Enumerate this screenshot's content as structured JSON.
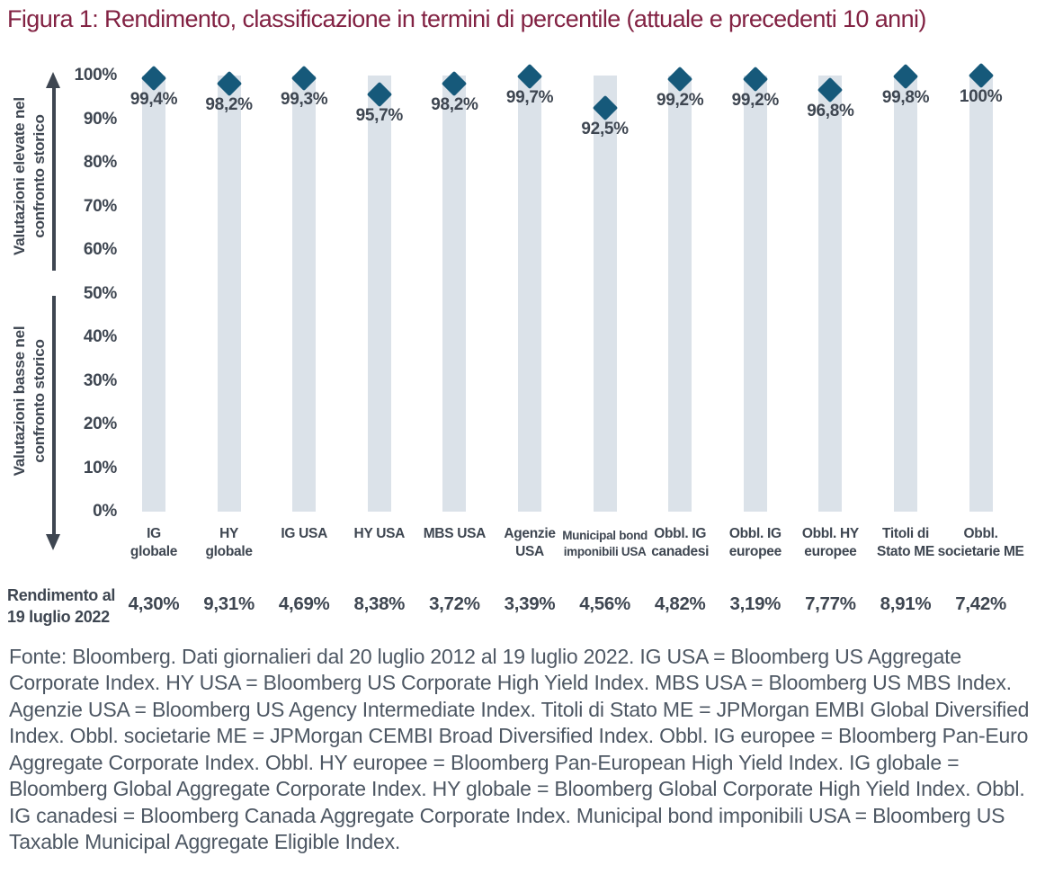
{
  "title": "Figura 1: Rendimento, classificazione in termini di percentile (attuale e precedenti 10 anni)",
  "colors": {
    "title": "#822243",
    "text": "#3E4651",
    "marker": "#16597A",
    "bar": "#DBE2E9",
    "footer": "#4D5763"
  },
  "y_axis": {
    "top_label": "Valutazioni elevate nel\nconfronto storico",
    "bottom_label": "Valutazioni basse nel\nconfronto storico"
  },
  "chart_data": {
    "type": "bar",
    "subtype": "full-range-bars-with-diamond-percentile-markers",
    "title": "Figura 1: Rendimento, classificazione in termini di percentile (attuale e precedenti 10 anni)",
    "ylim": [
      0,
      100
    ],
    "grid": false,
    "marker": "diamond",
    "range_bar": {
      "min": 0,
      "max": 100
    },
    "y_ticks": [
      "100%",
      "90%",
      "80%",
      "70%",
      "60%",
      "50%",
      "40%",
      "30%",
      "20%",
      "10%",
      "0%"
    ],
    "y_annotation_high": "Valutazioni elevate nel confronto storico",
    "y_annotation_low": "Valutazioni basse nel confronto storico",
    "categories": [
      "IG globale",
      "HY globale",
      "IG USA",
      "HY USA",
      "MBS USA",
      "Agenzie USA",
      "Municipal bond imponibili USA",
      "Obbl. IG canadesi",
      "Obbl. IG europee",
      "Obbl. HY europee",
      "Titoli di Stato ME",
      "Obbl. societarie ME"
    ],
    "category_labels": [
      "IG\nglobale",
      "HY\nglobale",
      "IG USA",
      "HY USA",
      "MBS USA",
      "Agenzie\nUSA",
      "Municipal bond\nimponibili USA",
      "Obbl. IG\ncanadesi",
      "Obbl. IG\neuropee",
      "Obbl. HY\neuropee",
      "Titoli di\nStato ME",
      "Obbl.\nsocietarie ME"
    ],
    "series": [
      {
        "name": "Classificazione percentile (attuale e precedenti 10 anni)",
        "values": [
          99.4,
          98.2,
          99.3,
          95.7,
          98.2,
          99.7,
          92.5,
          99.2,
          99.2,
          96.8,
          99.8,
          100
        ],
        "labels": [
          "99,4%",
          "98,2%",
          "99,3%",
          "95,7%",
          "98,2%",
          "99,7%",
          "92,5%",
          "99,2%",
          "99,2%",
          "96,8%",
          "99,8%",
          "100%"
        ]
      },
      {
        "name": "Rendimento al 19 luglio 2022",
        "values": [
          4.3,
          9.31,
          4.69,
          8.38,
          3.72,
          3.39,
          4.56,
          4.82,
          3.19,
          7.77,
          8.91,
          7.42
        ],
        "labels": [
          "4,30%",
          "9,31%",
          "4,69%",
          "8,38%",
          "3,72%",
          "3,39%",
          "4,56%",
          "4,82%",
          "3,19%",
          "7,77%",
          "8,91%",
          "7,42%"
        ]
      }
    ]
  },
  "yield_row": {
    "label": "Rendimento al\n19 luglio 2022"
  },
  "footer": "Fonte: Bloomberg. Dati giornalieri dal 20 luglio 2012 al 19 luglio 2022. IG USA = Bloomberg US Aggregate Corporate Index. HY USA = Bloomberg US Corporate High Yield Index. MBS USA = Bloomberg US MBS Index. Agenzie USA = Bloomberg US Agency Intermediate Index. Titoli di Stato ME = JPMorgan EMBI Global Diversified Index. Obbl. societarie ME = JPMorgan CEMBI Broad Diversified Index. Obbl. IG europee = Bloomberg Pan-Euro Aggregate Corporate Index. Obbl. HY europee = Bloomberg Pan-European High Yield Index. IG globale = Bloomberg Global Aggregate Corporate Index. HY globale = Bloomberg Global Corporate High Yield Index. Obbl. IG canadesi = Bloomberg Canada Aggregate Corporate Index. Municipal bond imponibili USA = Bloomberg US Taxable Municipal Aggregate Eligible Index."
}
